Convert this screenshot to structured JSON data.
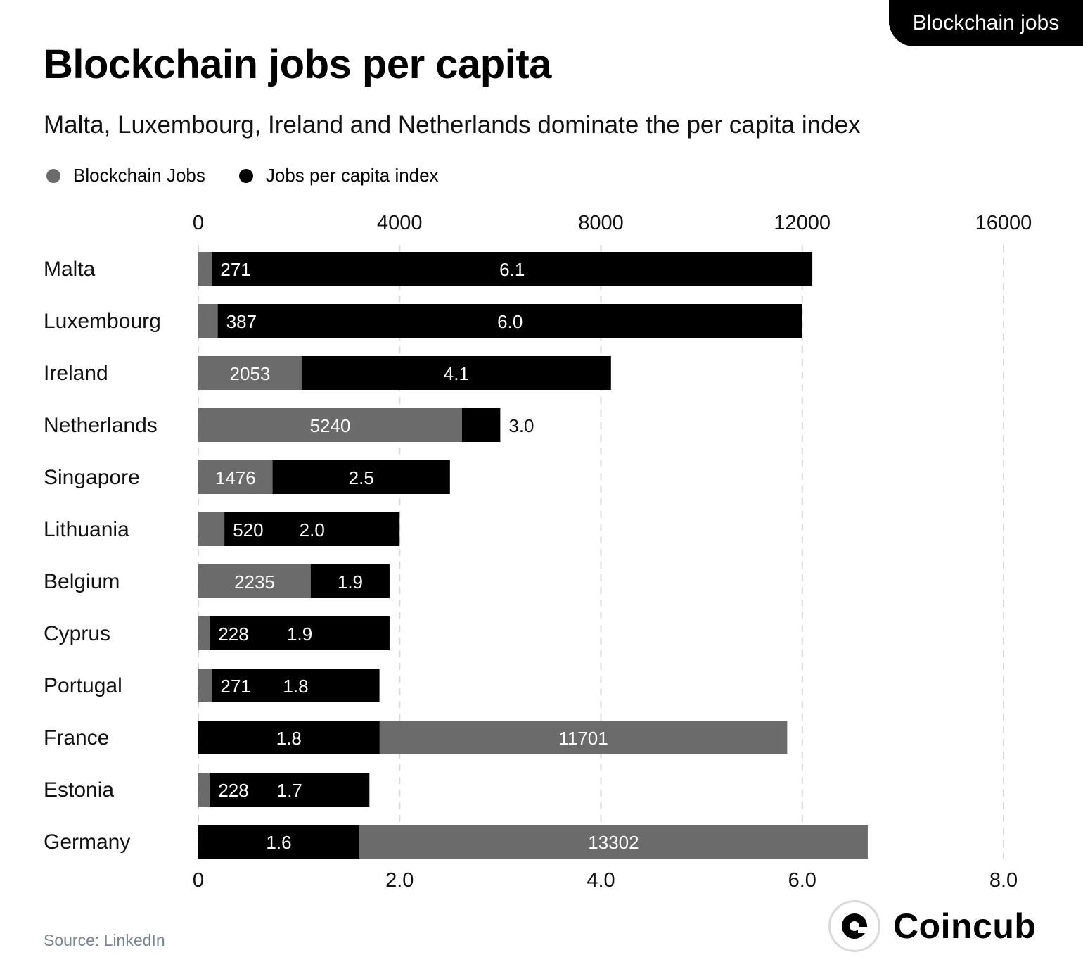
{
  "tag": "Blockchain jobs",
  "title": "Blockchain jobs per capita",
  "subtitle": "Malta, Luxembourg, Ireland and Netherlands dominate the per capita index",
  "source": "Source: LinkedIn",
  "logo": {
    "name": "Coincub",
    "icon": "coincub-logo-icon"
  },
  "colors": {
    "jobs": "#6b6b6b",
    "index": "#000000",
    "grid": "#d9d9d9",
    "label_text": "#ffffff"
  },
  "chart_data": {
    "type": "bar",
    "orientation": "horizontal",
    "title": "Blockchain jobs per capita",
    "subtitle": "Malta, Luxembourg, Ireland and Netherlands dominate the per capita index",
    "legend": {
      "position": "top-left",
      "entries": [
        "Blockchain Jobs",
        "Jobs per capita index"
      ]
    },
    "categories": [
      "Malta",
      "Luxembourg",
      "Ireland",
      "Netherlands",
      "Singapore",
      "Lithuania",
      "Belgium",
      "Cyprus",
      "Portugal",
      "France",
      "Estonia",
      "Germany"
    ],
    "series": [
      {
        "name": "Blockchain Jobs",
        "axis": "top",
        "color": "#6b6b6b",
        "values": [
          271,
          387,
          2053,
          5240,
          1476,
          520,
          2235,
          228,
          271,
          11701,
          228,
          13302
        ],
        "labels": [
          "271",
          "387",
          "2053",
          "5240",
          "1476",
          "520",
          "2235",
          "228",
          "271",
          "11701",
          "228",
          "13302"
        ]
      },
      {
        "name": "Jobs per capita index",
        "axis": "bottom",
        "color": "#000000",
        "values": [
          6.1,
          6.0,
          4.1,
          3.0,
          2.5,
          2.0,
          1.9,
          1.9,
          1.8,
          1.8,
          1.7,
          1.6
        ],
        "labels": [
          "6.1",
          "6.0",
          "4.1",
          "3.0",
          "2.5",
          "2.0",
          "1.9",
          "1.9",
          "1.8",
          "1.8",
          "1.7",
          "1.6"
        ]
      }
    ],
    "top_axis": {
      "range": [
        0,
        16000
      ],
      "ticks": [
        "0",
        "4000",
        "8000",
        "12000",
        "16000"
      ]
    },
    "bottom_axis": {
      "range": [
        0,
        8.0
      ],
      "ticks": [
        "0",
        "2.0",
        "4.0",
        "6.0",
        "8.0"
      ]
    },
    "grid": true,
    "xlabel": "",
    "ylabel": ""
  }
}
